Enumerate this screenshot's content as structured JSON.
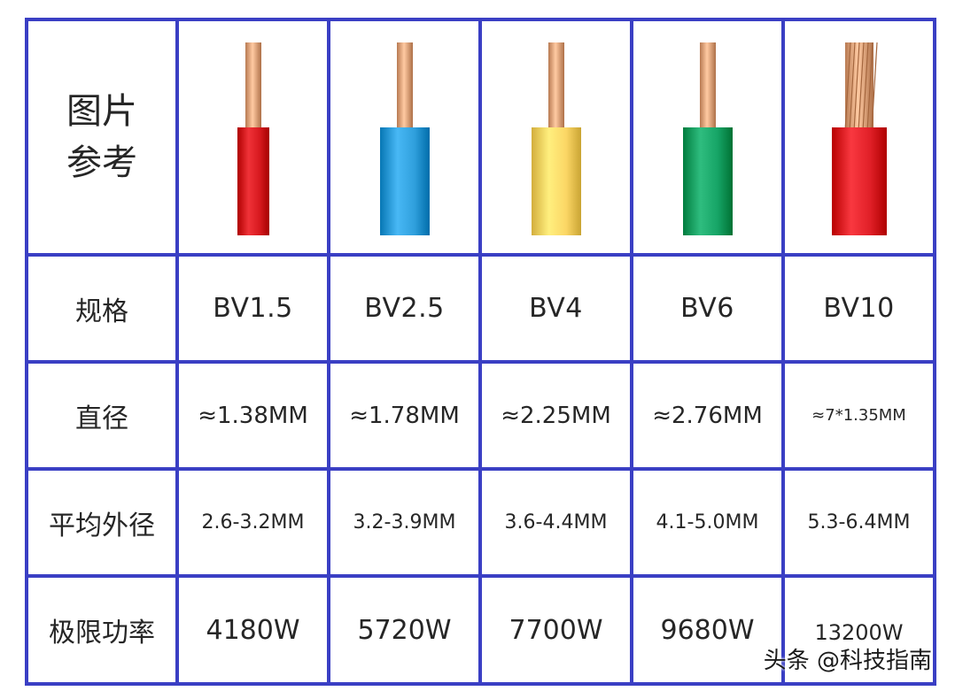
{
  "header": {
    "title_line1": "图片",
    "title_line2": "参考"
  },
  "rows": {
    "spec_label": "规格",
    "diameter_label": "直径",
    "outer_label": "平均外径",
    "power_label": "极限功率"
  },
  "wires": [
    {
      "spec": "BV1.5",
      "diameter": "≈1.38MM",
      "outer": "2.6-3.2MM",
      "power": "4180W",
      "insulation_color": "#d7191f",
      "stranded": false
    },
    {
      "spec": "BV2.5",
      "diameter": "≈1.78MM",
      "outer": "3.2-3.9MM",
      "power": "5720W",
      "insulation_color": "#2f9fdc",
      "stranded": false
    },
    {
      "spec": "BV4",
      "diameter": "≈2.25MM",
      "outer": "3.6-4.4MM",
      "power": "7700W",
      "insulation_color": "#fbd665",
      "stranded": false
    },
    {
      "spec": "BV6",
      "diameter": "≈2.76MM",
      "outer": "4.1-5.0MM",
      "power": "9680W",
      "insulation_color": "#16a466",
      "stranded": false
    },
    {
      "spec": "BV10",
      "diameter": "≈7*1.35MM",
      "outer": "5.3-6.4MM",
      "power": "13200W",
      "insulation_color": "#e01f27",
      "stranded": true
    }
  ],
  "colors": {
    "border": "#3a3fc4",
    "copper": "#e0a27a"
  },
  "watermark": "头条 @科技指南"
}
